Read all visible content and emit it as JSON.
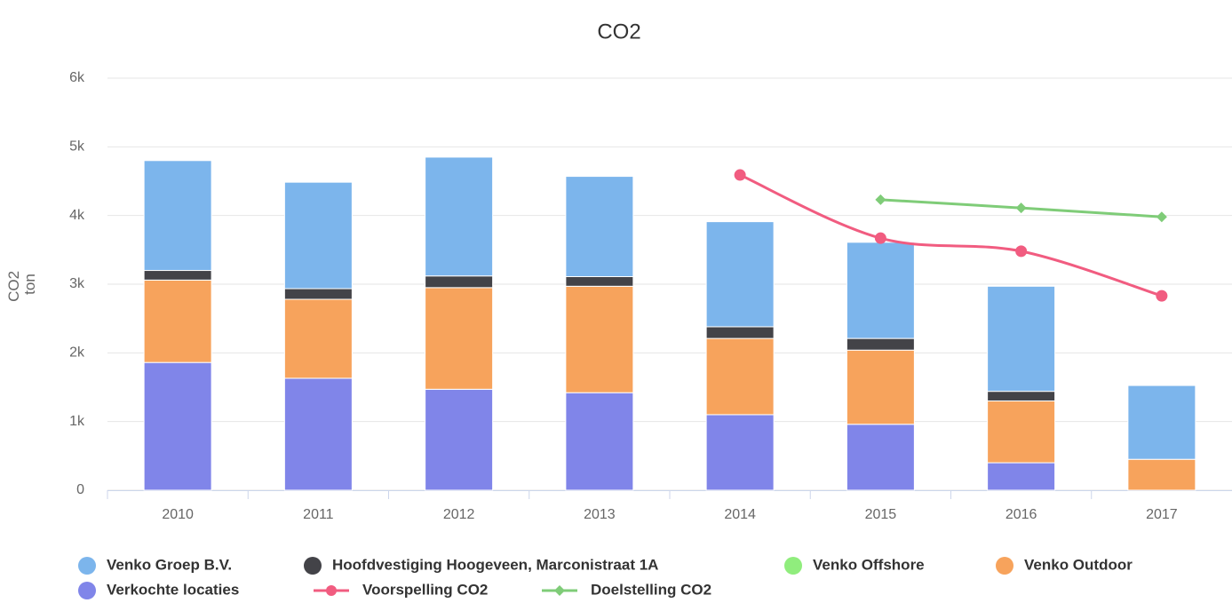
{
  "chart_data": {
    "type": "stacked_bar_line",
    "title": "CO2",
    "y_label": [
      "CO2",
      "ton"
    ],
    "categories": [
      "2010",
      "2011",
      "2012",
      "2013",
      "2014",
      "2015",
      "2016",
      "2017"
    ],
    "ylim": [
      0,
      6000
    ],
    "yticks": [
      0,
      {
        "value": 1000,
        "label": "1k"
      },
      {
        "value": 2000,
        "label": "2k"
      },
      {
        "value": 3000,
        "label": "3k"
      },
      {
        "value": 4000,
        "label": "4k"
      },
      {
        "value": 5000,
        "label": "5k"
      },
      {
        "value": 6000,
        "label": "6k"
      }
    ],
    "grid": true,
    "series": [
      {
        "name": "Venko Groep B.V.",
        "kind": "bar",
        "color": "#7cb5ec",
        "values": [
          1600,
          1550,
          1730,
          1460,
          1530,
          1400,
          1530,
          1075
        ]
      },
      {
        "name": "Hoofdvestiging Hoogeveen, Marconistraat 1A",
        "kind": "bar",
        "color": "#434348",
        "values": [
          140,
          155,
          170,
          140,
          170,
          170,
          140,
          null
        ]
      },
      {
        "name": "Venko Offshore",
        "kind": "bar",
        "color": "#90ed7d",
        "values": [
          null,
          null,
          null,
          null,
          null,
          null,
          null,
          null
        ]
      },
      {
        "name": "Venko Outdoor",
        "kind": "bar",
        "color": "#f7a35c",
        "values": [
          1200,
          1150,
          1480,
          1550,
          1110,
          1080,
          900,
          450
        ]
      },
      {
        "name": "Verkochte locaties",
        "kind": "bar",
        "color": "#8085e9",
        "values": [
          1860,
          1630,
          1470,
          1420,
          1100,
          960,
          400,
          null
        ]
      },
      {
        "name": "Voorspelling CO2",
        "kind": "line",
        "marker": "circle",
        "color": "#f15c80",
        "values": [
          null,
          null,
          null,
          null,
          4590,
          3670,
          3480,
          2830
        ]
      },
      {
        "name": "Doelstelling CO2",
        "kind": "line",
        "marker": "diamond",
        "color": "#7fcc78",
        "values": [
          null,
          null,
          null,
          null,
          null,
          4230,
          4110,
          3980
        ]
      }
    ]
  }
}
